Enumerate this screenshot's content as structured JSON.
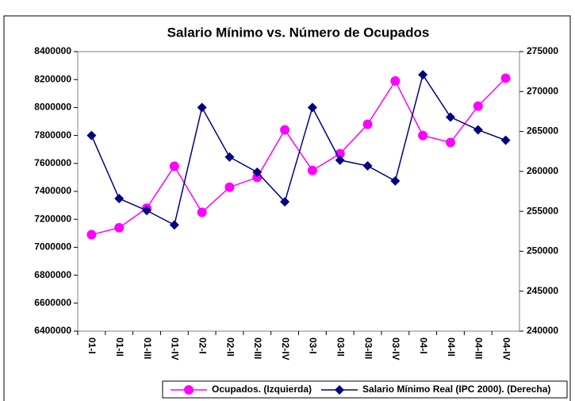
{
  "chart_data": {
    "type": "line",
    "title": "Salario Mínimo vs. Número de Ocupados",
    "categories": [
      "01-I",
      "01-II",
      "01-III",
      "01-IV",
      "02-I",
      "02-II",
      "02-III",
      "02-IV",
      "03-I",
      "03-II",
      "03-III",
      "03-IV",
      "04-I",
      "04-II",
      "04-III",
      "04-IV"
    ],
    "series": [
      {
        "name": "Ocupados. (Izquierda)",
        "color": "#ff00ff",
        "marker": "circle",
        "axis": "y",
        "values": [
          7090000,
          7140000,
          7280000,
          7580000,
          7250000,
          7430000,
          7500000,
          7840000,
          7550000,
          7670000,
          7880000,
          8190000,
          7800000,
          7750000,
          8010000,
          8210000
        ]
      },
      {
        "name": "Salario Mínimo Real (IPC 2000). (Derecha)",
        "color": "#000080",
        "marker": "diamond",
        "axis": "y2",
        "values": [
          264500,
          256600,
          255100,
          253300,
          268000,
          261800,
          259900,
          256200,
          268000,
          261400,
          260700,
          258800,
          272100,
          266800,
          265200,
          263900
        ]
      }
    ],
    "ylim": [
      6400000,
      8400000
    ],
    "yticks": [
      6400000,
      6600000,
      6800000,
      7000000,
      7200000,
      7400000,
      7600000,
      7800000,
      8000000,
      8200000,
      8400000
    ],
    "y2lim": [
      240000,
      275000
    ],
    "y2ticks": [
      240000,
      245000,
      250000,
      255000,
      260000,
      265000,
      270000,
      275000
    ],
    "grid": false,
    "legend": "bottom"
  }
}
